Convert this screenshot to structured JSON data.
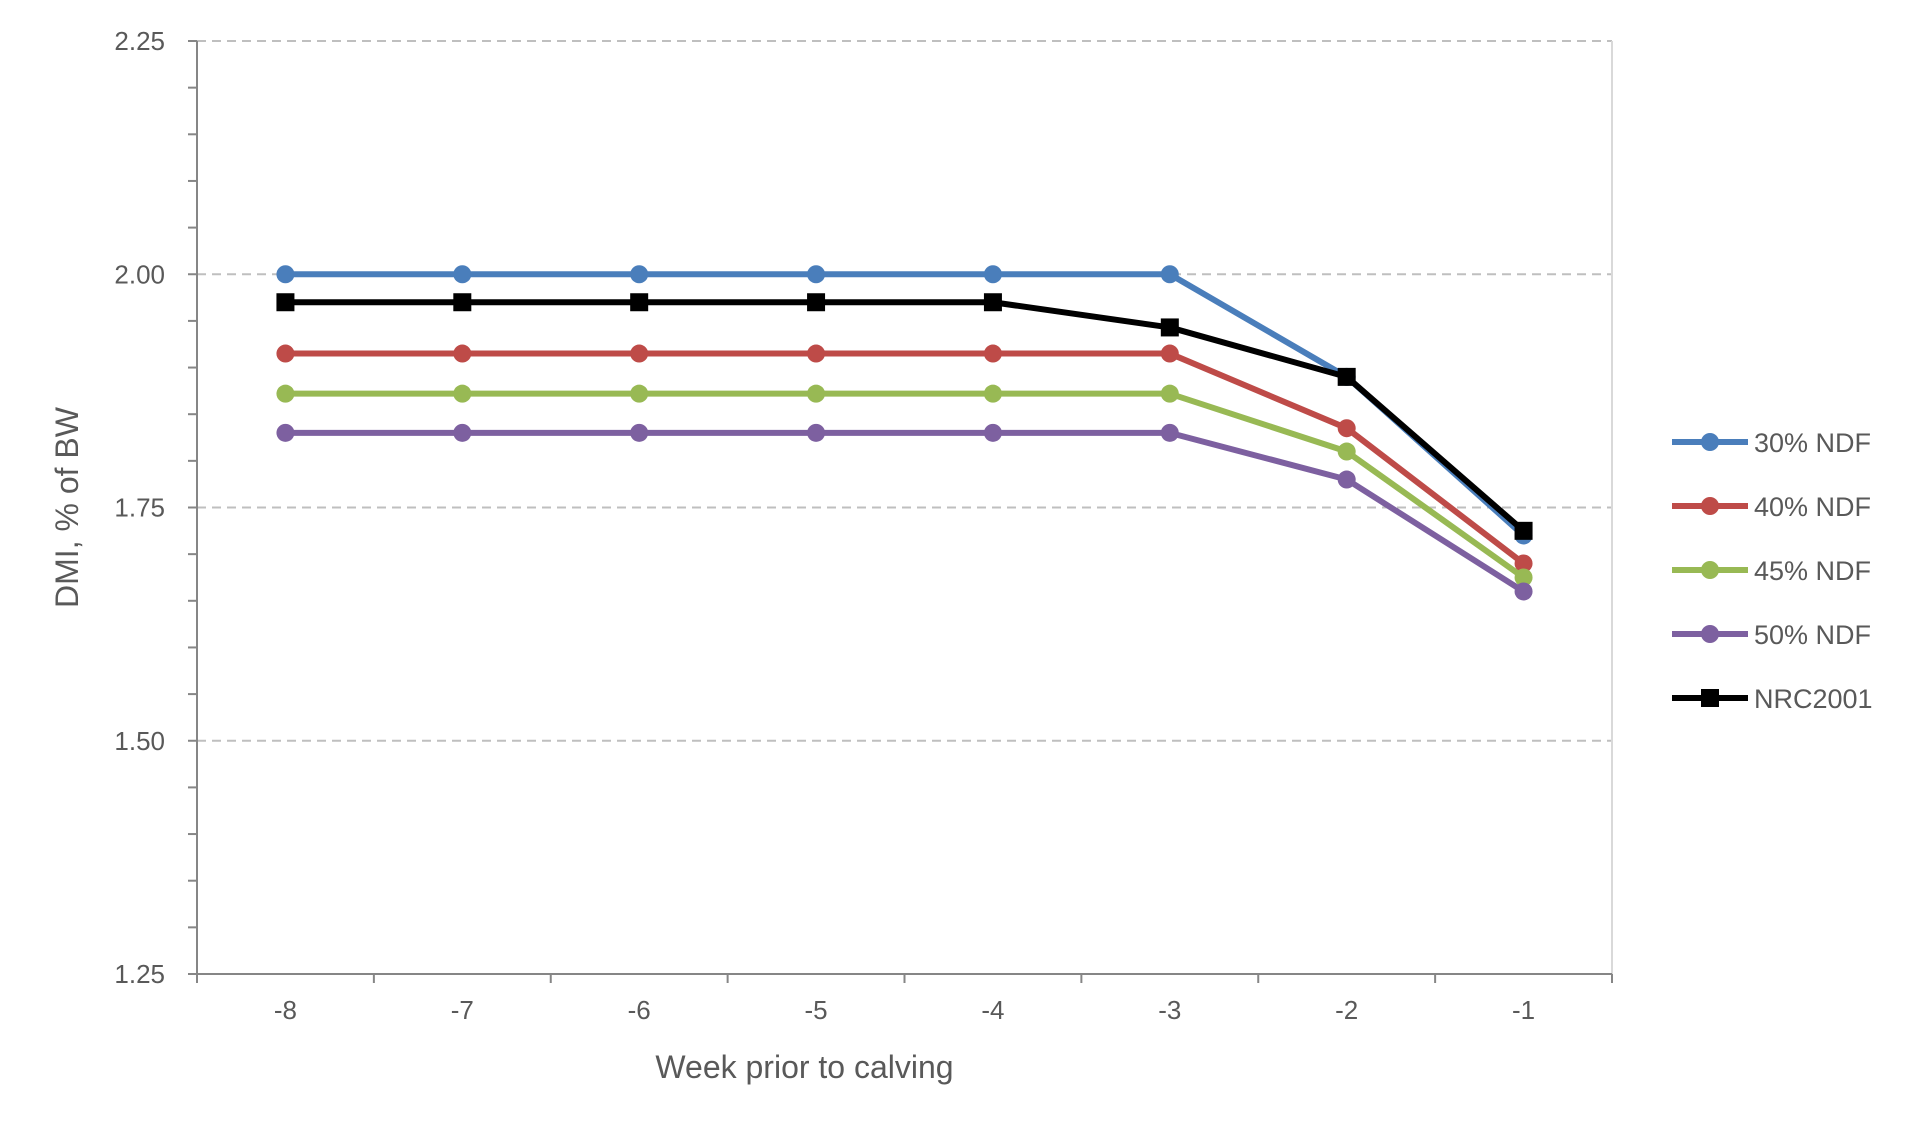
{
  "chart_data": {
    "type": "line",
    "title": "",
    "xlabel": "Week prior to calving",
    "ylabel": "DMI, % of BW",
    "x": [
      -8,
      -7,
      -6,
      -5,
      -4,
      -3,
      -2,
      -1
    ],
    "x_tick_labels": [
      "-8",
      "-7",
      "-6",
      "-5",
      "-4",
      "-3",
      "-2",
      "-1"
    ],
    "ylim": [
      1.25,
      2.25
    ],
    "y_ticks": [
      1.25,
      1.5,
      1.75,
      2.0,
      2.25
    ],
    "y_tick_labels": [
      "1.25",
      "1.50",
      "1.75",
      "2.00",
      "2.25"
    ],
    "grid": "horizontal dashed at major ticks",
    "legend_position": "right",
    "series": [
      {
        "name": "30% NDF",
        "color": "#4a7ebb",
        "marker": "circle",
        "values": [
          2.0,
          2.0,
          2.0,
          2.0,
          2.0,
          2.0,
          1.89,
          1.72
        ]
      },
      {
        "name": "40% NDF",
        "color": "#be4b48",
        "marker": "circle",
        "values": [
          1.915,
          1.915,
          1.915,
          1.915,
          1.915,
          1.915,
          1.835,
          1.69
        ]
      },
      {
        "name": "45% NDF",
        "color": "#98b954",
        "marker": "circle",
        "values": [
          1.872,
          1.872,
          1.872,
          1.872,
          1.872,
          1.872,
          1.81,
          1.675
        ]
      },
      {
        "name": "50% NDF",
        "color": "#7d60a0",
        "marker": "circle",
        "values": [
          1.83,
          1.83,
          1.83,
          1.83,
          1.83,
          1.83,
          1.78,
          1.66
        ]
      },
      {
        "name": "NRC2001",
        "color": "#000000",
        "marker": "square",
        "values": [
          1.97,
          1.97,
          1.97,
          1.97,
          1.97,
          1.943,
          1.89,
          1.725
        ]
      }
    ]
  }
}
